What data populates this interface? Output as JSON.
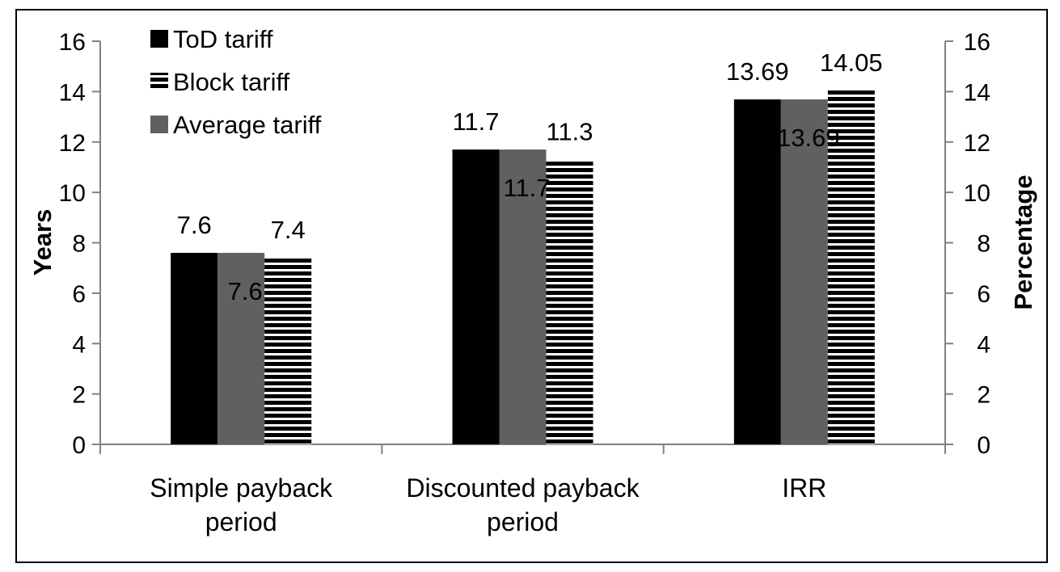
{
  "chart_data": {
    "type": "bar",
    "title": "",
    "categories": [
      [
        "Simple payback",
        "period"
      ],
      [
        "Discounted payback",
        "period"
      ],
      [
        "IRR"
      ]
    ],
    "series": [
      {
        "name": "ToD tariff",
        "values": [
          7.6,
          11.7,
          13.69
        ],
        "color": "#000000",
        "pattern": "solid"
      },
      {
        "name": "Average tariff",
        "values": [
          7.6,
          11.7,
          13.69
        ],
        "color": "#606060",
        "pattern": "solid"
      },
      {
        "name": "Block tariff",
        "values": [
          7.4,
          11.3,
          14.05
        ],
        "color": "#000000",
        "pattern": "horizontal-stripes"
      }
    ],
    "data_labels": [
      [
        "7.6",
        "11.7",
        "13.69"
      ],
      [
        "7.6",
        "11.7",
        "13.69"
      ],
      [
        "7.4",
        "11.3",
        "14.05"
      ]
    ],
    "ylabel": "Years",
    "y2label": "Percentage",
    "ylim": [
      0,
      16
    ],
    "y2lim": [
      0,
      16
    ],
    "yticks": [
      "0",
      "2",
      "4",
      "6",
      "8",
      "10",
      "12",
      "14",
      "16"
    ],
    "grid": false,
    "legend": {
      "placement": "top-left",
      "entries": [
        {
          "label": "ToD tariff",
          "pattern": "solid",
          "color": "#000000"
        },
        {
          "label": "Block tariff",
          "pattern": "horizontal-stripes",
          "color": "#000000"
        },
        {
          "label": "Average tariff",
          "pattern": "solid",
          "color": "#606060"
        }
      ]
    }
  }
}
